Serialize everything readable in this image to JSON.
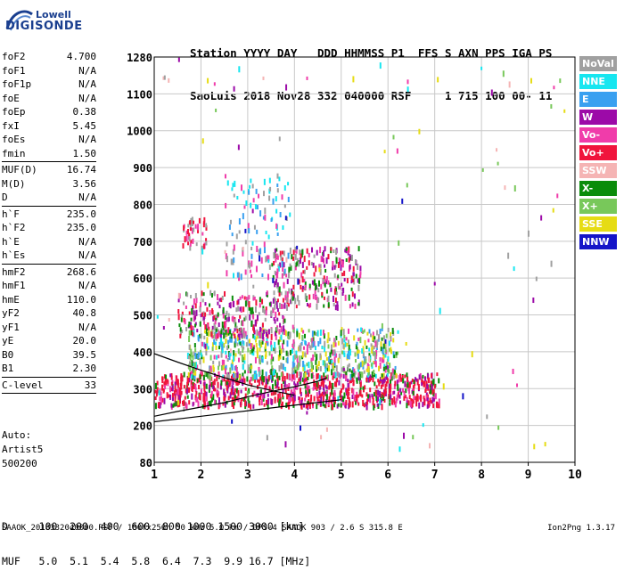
{
  "logo": {
    "line1": "Lowell",
    "line2": "DIGISONDE"
  },
  "header": {
    "line1": "Station YYYY DAY   DDD HHMMSS P1  FFS S AXN PPS IGA PS",
    "line2": "SaoLuis 2018 Nov28 332 040000 RSF     1 715 100 00- 11"
  },
  "params": [
    {
      "key": "foF2",
      "value": "4.700"
    },
    {
      "key": "foF1",
      "value": "N/A"
    },
    {
      "key": "foF1p",
      "value": "N/A"
    },
    {
      "key": "foE",
      "value": "N/A"
    },
    {
      "key": "foEp",
      "value": "0.38"
    },
    {
      "key": "fxI",
      "value": "5.45"
    },
    {
      "key": "foEs",
      "value": "N/A"
    },
    {
      "key": "fmin",
      "value": "1.50"
    },
    {
      "sep": true
    },
    {
      "key": "MUF(D)",
      "value": "16.74"
    },
    {
      "key": "M(D)",
      "value": "3.56"
    },
    {
      "key": "D",
      "value": "N/A"
    },
    {
      "sep": true
    },
    {
      "key": "h`F",
      "value": "235.0"
    },
    {
      "key": "h`F2",
      "value": "235.0"
    },
    {
      "key": "h`E",
      "value": "N/A"
    },
    {
      "key": "h`Es",
      "value": "N/A"
    },
    {
      "sep": true
    },
    {
      "key": "hmF2",
      "value": "268.6"
    },
    {
      "key": "hmF1",
      "value": "N/A"
    },
    {
      "key": "hmE",
      "value": "110.0"
    },
    {
      "key": "yF2",
      "value": "40.8"
    },
    {
      "key": "yF1",
      "value": "N/A"
    },
    {
      "key": "yE",
      "value": "20.0"
    },
    {
      "key": "B0",
      "value": "39.5"
    },
    {
      "key": "B1",
      "value": "2.30"
    },
    {
      "sep": true
    },
    {
      "key": "C-level",
      "value": "33"
    },
    {
      "sep": true
    }
  ],
  "artist": {
    "line1": "Auto:",
    "line2": "Artist5",
    "line3": "500200"
  },
  "legend": [
    {
      "label": "NoVal",
      "color": "#a0a0a0"
    },
    {
      "label": "NNE",
      "color": "#17e6f0"
    },
    {
      "label": "E",
      "color": "#3aa0f0"
    },
    {
      "label": "W",
      "color": "#9c0aa8"
    },
    {
      "label": "Vo-",
      "color": "#f03caa"
    },
    {
      "label": "Vo+",
      "color": "#f0143c"
    },
    {
      "label": "SSW",
      "color": "#f5b4b4"
    },
    {
      "label": "X-",
      "color": "#0a8c0a"
    },
    {
      "label": "X+",
      "color": "#78c85a"
    },
    {
      "label": "SSE",
      "color": "#e6dc14"
    },
    {
      "label": "NNW",
      "color": "#1414c8"
    }
  ],
  "chart_data": {
    "type": "scatter",
    "x_ticks": [
      "1",
      "2",
      "3",
      "4",
      "5",
      "6",
      "7",
      "8",
      "9",
      "10"
    ],
    "y_ticks": [
      "80",
      "200",
      "300",
      "400",
      "500",
      "600",
      "700",
      "800",
      "900",
      "1000",
      "1100",
      "1280"
    ],
    "xlim": [
      1,
      10
    ],
    "y_tick_values": [
      80,
      200,
      300,
      400,
      500,
      600,
      700,
      800,
      900,
      1000,
      1100,
      1280
    ],
    "grid": true,
    "trace_profile": {
      "x": [
        1.0,
        1.5,
        2.0,
        2.5,
        3.0,
        3.5,
        4.0,
        4.5,
        4.7
      ],
      "y": [
        225,
        238,
        250,
        262,
        278,
        292,
        305,
        320,
        330
      ]
    },
    "trace_upper": {
      "x": [
        1.0,
        1.5,
        2.0,
        2.5,
        3.0,
        3.5,
        4.0
      ],
      "y": [
        395,
        372,
        350,
        330,
        310,
        295,
        282
      ]
    },
    "trace_lower": {
      "x": [
        1.0,
        2.0,
        3.0,
        4.0,
        5.0
      ],
      "y": [
        210,
        225,
        240,
        255,
        270
      ]
    },
    "clusters": [
      {
        "x": [
          1.0,
          7.1
        ],
        "y": [
          250,
          340
        ],
        "n": 900,
        "colors": [
          "#f0143c",
          "#f03caa",
          "#f0143c",
          "#9c0aa8",
          "#0a8c0a",
          "#f0143c"
        ]
      },
      {
        "x": [
          1.7,
          6.2
        ],
        "y": [
          330,
          460
        ],
        "n": 700,
        "colors": [
          "#e6dc14",
          "#78c85a",
          "#a0a0a0",
          "#3aa0f0",
          "#f03caa",
          "#17e6f0",
          "#0a8c0a"
        ]
      },
      {
        "x": [
          1.5,
          3.8
        ],
        "y": [
          440,
          560
        ],
        "n": 260,
        "colors": [
          "#f0143c",
          "#9c0aa8",
          "#0a8c0a",
          "#f03caa",
          "#a0a0a0"
        ]
      },
      {
        "x": [
          3.5,
          5.4
        ],
        "y": [
          520,
          680
        ],
        "n": 260,
        "colors": [
          "#f03caa",
          "#9c0aa8",
          "#0a8c0a",
          "#f0143c",
          "#a0a0a0"
        ]
      },
      {
        "x": [
          1.6,
          2.1
        ],
        "y": [
          680,
          760
        ],
        "n": 45,
        "colors": [
          "#f03caa",
          "#f0143c",
          "#a0a0a0"
        ]
      },
      {
        "x": [
          2.5,
          3.9
        ],
        "y": [
          600,
          880
        ],
        "n": 120,
        "colors": [
          "#17e6f0",
          "#a0a0a0",
          "#f03caa",
          "#3aa0f0"
        ]
      },
      {
        "x": [
          1.0,
          9.8
        ],
        "y": [
          120,
          1280
        ],
        "n": 110,
        "colors": [
          "#17e6f0",
          "#a0a0a0",
          "#f03caa",
          "#9c0aa8",
          "#78c85a",
          "#e6dc14",
          "#1414c8",
          "#f5b4b4"
        ]
      }
    ]
  },
  "tables": {
    "d_row": "D     100  200  400  600  800 1000 1500 3000 [km]",
    "muf_row": "MUF   5.0  5.1  5.4  5.8  6.4  7.3  9.9 16.7 [MHz]"
  },
  "footer": {
    "file": "SAAOK_2018332040000.RSF / 180fx256h 50 kHz 5.0 km / DPS-4 SAAOK 903 / 2.6 S 315.8 E",
    "version": "Ion2Png 1.3.17"
  }
}
